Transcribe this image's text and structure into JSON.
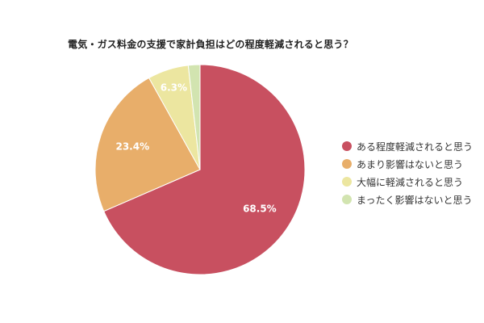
{
  "chart_data": {
    "type": "pie",
    "title": "電気・ガス料金の支援で家計負担はどの程度軽減されると思う？",
    "categories": [
      "ある程度軽減されると思う",
      "あまり影響はないと思う",
      "大幅に軽減されると思う",
      "まったく影響はないと思う"
    ],
    "values": [
      68.5,
      23.4,
      6.3,
      1.8
    ],
    "data_labels": [
      "68.5%",
      "23.4%",
      "6.3%",
      ""
    ],
    "colors": [
      "#c85060",
      "#e8ae6a",
      "#ece6a0",
      "#d2e4b0"
    ],
    "legend_position": "right"
  }
}
